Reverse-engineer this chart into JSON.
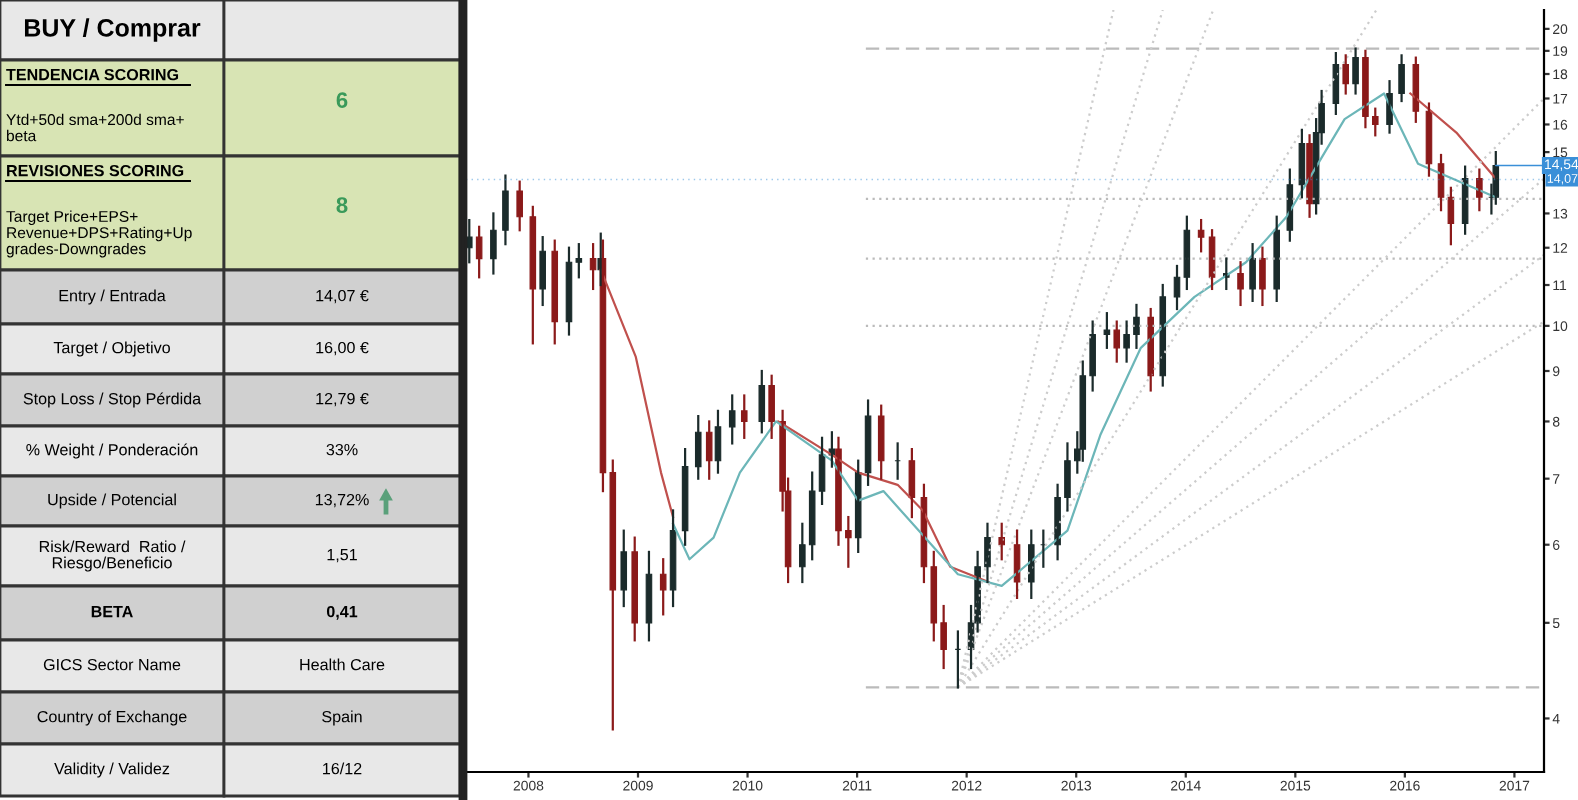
{
  "chart_data": [
    {
      "type": "other",
      "title": "BUY / Comprar",
      "annotations": [
        "TENDENCIA SCORING",
        "Ytd+50d sma+200d sma+\nbeta",
        "6",
        "REVISIONES SCORING",
        "Target Price+EPS+\nRevenue+DPS+Rating+Up\ngrades-Downgrades",
        "8",
        "Entry / Entrada",
        "14,07 €",
        "Target / Objetivo",
        "16,00 €",
        "Stop Loss / Stop Pérdida",
        "12,79 €",
        "% Weight / Ponderación",
        "33%",
        "Upside / Potencial",
        "13,72%",
        "Risk/Reward  Ratio /\nRiesgo/Beneficio",
        "1,51",
        "BETA",
        "0,41",
        "GICS Sector Name",
        "Health Care",
        "Country of Exchange",
        "Spain",
        "Validity / Validez",
        "16/12"
      ]
    },
    {
      "type": "candlestick",
      "log": "y",
      "x": [
        2007.46,
        2007.55,
        2007.68,
        2007.79,
        2007.92,
        2008.04,
        2008.13,
        2008.24,
        2008.37,
        2008.46,
        2008.59,
        2008.66,
        2008.68,
        2008.77,
        2008.87,
        2008.97,
        2009.1,
        2009.23,
        2009.32,
        2009.43,
        2009.55,
        2009.65,
        2009.73,
        2009.86,
        2009.97,
        2010.13,
        2010.22,
        2010.32,
        2010.37,
        2010.5,
        2010.59,
        2010.68,
        2010.77,
        2010.83,
        2010.92,
        2011.01,
        2011.1,
        2011.22,
        2011.37,
        2011.5,
        2011.61,
        2011.7,
        2011.79,
        2011.92,
        2012.04,
        2012.1,
        2012.19,
        2012.32,
        2012.46,
        2012.59,
        2012.7,
        2012.83,
        2012.92,
        2013.01,
        2013.06,
        2013.15,
        2013.28,
        2013.37,
        2013.46,
        2013.55,
        2013.68,
        2013.79,
        2013.92,
        2014.01,
        2014.14,
        2014.24,
        2014.37,
        2014.5,
        2014.61,
        2014.7,
        2014.83,
        2014.95,
        2015.06,
        2015.13,
        2015.19,
        2015.24,
        2015.37,
        2015.46,
        2015.55,
        2015.64,
        2015.73,
        2015.86,
        2015.97,
        2016.1,
        2016.22,
        2016.33,
        2016.42,
        2016.55,
        2016.68,
        2016.79,
        2016.83
      ],
      "ohlc": [
        [
          12.0,
          12.8,
          11.6,
          12.3
        ],
        [
          12.3,
          12.6,
          11.2,
          11.7
        ],
        [
          11.7,
          13.0,
          11.3,
          12.5
        ],
        [
          12.5,
          14.2,
          12.1,
          13.7
        ],
        [
          13.7,
          14.0,
          12.5,
          12.9
        ],
        [
          12.9,
          13.2,
          9.6,
          10.9
        ],
        [
          10.9,
          12.3,
          10.5,
          11.9
        ],
        [
          11.9,
          12.2,
          9.6,
          10.1
        ],
        [
          10.1,
          12.0,
          9.8,
          11.6
        ],
        [
          11.6,
          12.1,
          11.2,
          11.7
        ],
        [
          11.7,
          12.1,
          10.9,
          11.4
        ],
        [
          11.4,
          12.4,
          11.0,
          11.7
        ],
        [
          11.7,
          12.2,
          6.8,
          7.1
        ],
        [
          7.1,
          7.3,
          3.9,
          5.4
        ],
        [
          5.4,
          6.2,
          5.2,
          5.9
        ],
        [
          5.9,
          6.1,
          4.8,
          5.0
        ],
        [
          5.0,
          5.9,
          4.8,
          5.6
        ],
        [
          5.6,
          5.8,
          5.1,
          5.4
        ],
        [
          5.4,
          6.5,
          5.2,
          6.2
        ],
        [
          6.2,
          7.5,
          6.0,
          7.2
        ],
        [
          7.2,
          8.1,
          7.0,
          7.8
        ],
        [
          7.8,
          8.0,
          7.0,
          7.3
        ],
        [
          7.3,
          8.2,
          7.1,
          7.9
        ],
        [
          7.9,
          8.5,
          7.6,
          8.2
        ],
        [
          8.2,
          8.5,
          7.7,
          8.0
        ],
        [
          8.0,
          9.0,
          7.8,
          8.7
        ],
        [
          8.7,
          8.9,
          7.7,
          8.0
        ],
        [
          8.0,
          8.2,
          6.5,
          6.8
        ],
        [
          6.8,
          7.0,
          5.5,
          5.7
        ],
        [
          5.7,
          6.3,
          5.5,
          6.0
        ],
        [
          6.0,
          7.1,
          5.8,
          6.8
        ],
        [
          6.8,
          7.7,
          6.6,
          7.4
        ],
        [
          7.4,
          7.8,
          7.2,
          7.5
        ],
        [
          7.5,
          7.7,
          6.0,
          6.2
        ],
        [
          6.2,
          6.4,
          5.7,
          6.1
        ],
        [
          6.1,
          7.3,
          5.9,
          7.1
        ],
        [
          7.1,
          8.4,
          6.9,
          8.1
        ],
        [
          8.1,
          8.3,
          7.0,
          7.3
        ],
        [
          7.3,
          7.6,
          7.0,
          7.3
        ],
        [
          7.3,
          7.5,
          6.4,
          6.7
        ],
        [
          6.7,
          6.9,
          5.5,
          5.7
        ],
        [
          5.7,
          5.9,
          4.8,
          5.0
        ],
        [
          5.0,
          5.2,
          4.5,
          4.7
        ],
        [
          4.7,
          4.9,
          4.3,
          4.7
        ],
        [
          4.7,
          5.2,
          4.5,
          5.0
        ],
        [
          5.0,
          5.9,
          4.9,
          5.7
        ],
        [
          5.7,
          6.3,
          5.5,
          6.1
        ],
        [
          6.1,
          6.3,
          5.8,
          6.0
        ],
        [
          6.0,
          6.2,
          5.3,
          5.5
        ],
        [
          5.5,
          6.2,
          5.3,
          6.0
        ],
        [
          6.0,
          6.2,
          5.7,
          6.0
        ],
        [
          6.0,
          6.9,
          5.8,
          6.7
        ],
        [
          6.7,
          7.6,
          6.5,
          7.3
        ],
        [
          7.3,
          7.8,
          7.1,
          7.5
        ],
        [
          7.5,
          9.2,
          7.3,
          8.9
        ],
        [
          8.9,
          10.1,
          8.6,
          9.8
        ],
        [
          9.8,
          10.3,
          9.5,
          9.9
        ],
        [
          9.9,
          10.1,
          9.2,
          9.5
        ],
        [
          9.5,
          10.1,
          9.2,
          9.8
        ],
        [
          9.8,
          10.5,
          9.5,
          10.2
        ],
        [
          10.2,
          10.4,
          8.6,
          8.9
        ],
        [
          8.9,
          11.0,
          8.7,
          10.7
        ],
        [
          10.7,
          11.5,
          10.4,
          11.2
        ],
        [
          11.2,
          12.9,
          10.9,
          12.5
        ],
        [
          12.5,
          12.8,
          11.9,
          12.3
        ],
        [
          12.3,
          12.5,
          10.9,
          11.2
        ],
        [
          11.2,
          11.7,
          10.9,
          11.3
        ],
        [
          11.3,
          11.6,
          10.5,
          10.9
        ],
        [
          10.9,
          12.1,
          10.6,
          11.7
        ],
        [
          11.7,
          12.0,
          10.5,
          10.9
        ],
        [
          10.9,
          12.9,
          10.6,
          12.5
        ],
        [
          12.5,
          14.4,
          12.2,
          13.9
        ],
        [
          13.9,
          15.8,
          13.5,
          15.3
        ],
        [
          15.3,
          15.6,
          12.9,
          13.3
        ],
        [
          13.3,
          16.2,
          13.0,
          15.7
        ],
        [
          15.7,
          17.3,
          15.3,
          16.8
        ],
        [
          16.8,
          18.9,
          16.4,
          18.4
        ],
        [
          18.4,
          18.8,
          17.2,
          17.6
        ],
        [
          17.6,
          19.1,
          17.2,
          18.7
        ],
        [
          18.7,
          19.0,
          15.9,
          16.3
        ],
        [
          16.3,
          16.6,
          15.6,
          16.0
        ],
        [
          16.0,
          17.7,
          15.7,
          17.2
        ],
        [
          17.2,
          18.8,
          16.9,
          18.4
        ],
        [
          18.4,
          18.7,
          16.1,
          16.5
        ],
        [
          16.5,
          16.8,
          14.2,
          14.6
        ],
        [
          14.6,
          14.9,
          13.1,
          13.5
        ],
        [
          13.5,
          13.8,
          12.1,
          12.7
        ],
        [
          12.7,
          14.5,
          12.4,
          14.1
        ],
        [
          14.1,
          14.4,
          13.1,
          13.5
        ],
        [
          13.5,
          13.9,
          13.0,
          13.5
        ],
        [
          13.5,
          15.0,
          13.3,
          14.54
        ]
      ],
      "series": [
        {
          "type": "line",
          "color": "#c0504d",
          "x": [
            2008.66,
            2008.98,
            2009.21,
            2009.32,
            2009.5,
            2010.28,
            2010.77,
            2011.01,
            2011.37,
            2011.6,
            2011.85,
            2012.2,
            2012.5,
            2016.05,
            2016.47,
            2016.83
          ],
          "values": [
            11.4,
            9.3,
            7.1,
            6.4,
            null,
            8.0,
            7.4,
            7.1,
            6.9,
            6.5,
            5.7,
            5.5,
            null,
            17.2,
            15.7,
            14.1
          ]
        },
        {
          "type": "line",
          "color": "#6cb6b8",
          "x": [
            2009.32,
            2009.47,
            2009.69,
            2009.93,
            2010.26,
            2010.77,
            2011.01,
            2011.24,
            2011.92,
            2012.32,
            2012.92,
            2013.22,
            2013.59,
            2014.08,
            2014.55,
            2014.92,
            2015.27,
            2015.45,
            2015.81,
            2016.12,
            2016.83
          ],
          "values": [
            6.3,
            5.8,
            6.1,
            7.1,
            8.0,
            7.3,
            6.65,
            6.8,
            5.6,
            5.45,
            6.2,
            7.75,
            9.5,
            10.7,
            11.6,
            12.9,
            15.0,
            16.2,
            17.2,
            14.6,
            13.5
          ]
        },
        {
          "type": "line",
          "color": "#bbbbbb",
          "line_style": "dashed",
          "x": [
            2011.08,
            2017.27
          ],
          "values": [
            19.1,
            19.1
          ]
        },
        {
          "type": "line",
          "color": "#bbbbbb",
          "line_style": "dotted",
          "x": [
            2011.08,
            2017.27
          ],
          "values": [
            13.45,
            13.45
          ]
        },
        {
          "type": "line",
          "color": "#bbbbbb",
          "line_style": "dotted",
          "x": [
            2011.08,
            2017.27
          ],
          "values": [
            11.7,
            11.7
          ]
        },
        {
          "type": "line",
          "color": "#bbbbbb",
          "line_style": "dotted",
          "x": [
            2011.08,
            2017.27
          ],
          "values": [
            10.0,
            10.0
          ]
        },
        {
          "type": "line",
          "color": "#bbbbbb",
          "line_style": "dashed",
          "x": [
            2011.08,
            2017.27
          ],
          "values": [
            4.3,
            4.3
          ]
        },
        {
          "type": "line",
          "color": "#cccccc",
          "line_style": "dotted",
          "x": [
            2011.92,
            2013.34
          ],
          "values": [
            4.3,
            20.9
          ]
        },
        {
          "type": "line",
          "color": "#cccccc",
          "line_style": "dotted",
          "x": [
            2011.92,
            2013.79
          ],
          "values": [
            4.3,
            20.9
          ]
        },
        {
          "type": "line",
          "color": "#cccccc",
          "line_style": "dotted",
          "x": [
            2011.92,
            2014.25
          ],
          "values": [
            4.3,
            20.9
          ]
        },
        {
          "type": "line",
          "color": "#cccccc",
          "line_style": "dotted",
          "x": [
            2011.92,
            2015.74
          ],
          "values": [
            4.3,
            20.9
          ]
        },
        {
          "type": "line",
          "color": "#cccccc",
          "line_style": "dotted",
          "x": [
            2011.92,
            2017.27
          ],
          "values": [
            4.3,
            17.0
          ]
        },
        {
          "type": "line",
          "color": "#cccccc",
          "line_style": "dotted",
          "x": [
            2011.92,
            2017.27
          ],
          "values": [
            4.3,
            14.1
          ]
        },
        {
          "type": "line",
          "color": "#cccccc",
          "line_style": "dotted",
          "x": [
            2011.92,
            2017.27
          ],
          "values": [
            4.3,
            11.8
          ]
        },
        {
          "type": "line",
          "color": "#cccccc",
          "line_style": "dotted",
          "x": [
            2011.92,
            2017.27
          ],
          "values": [
            4.3,
            10.1
          ]
        }
      ],
      "annotations": [
        {
          "text": "14,54",
          "x": 2016.83,
          "y": 14.54
        }
      ],
      "ref_lines": [
        {
          "axis": "y",
          "value": 14.07,
          "label": "14,07",
          "color": "#3a8fd8"
        }
      ],
      "xlim": [
        2007.43,
        2017.27
      ],
      "xticks": [
        2008,
        2009,
        2010,
        2011,
        2012,
        2013,
        2014,
        2015,
        2016,
        2017
      ],
      "ylim": [
        3.53,
        20.9
      ],
      "yticks": [
        4,
        5,
        6,
        7,
        8,
        9,
        10,
        11,
        12,
        13,
        15,
        16,
        17,
        18,
        19,
        20
      ],
      "grid": false,
      "legend": false
    }
  ]
}
